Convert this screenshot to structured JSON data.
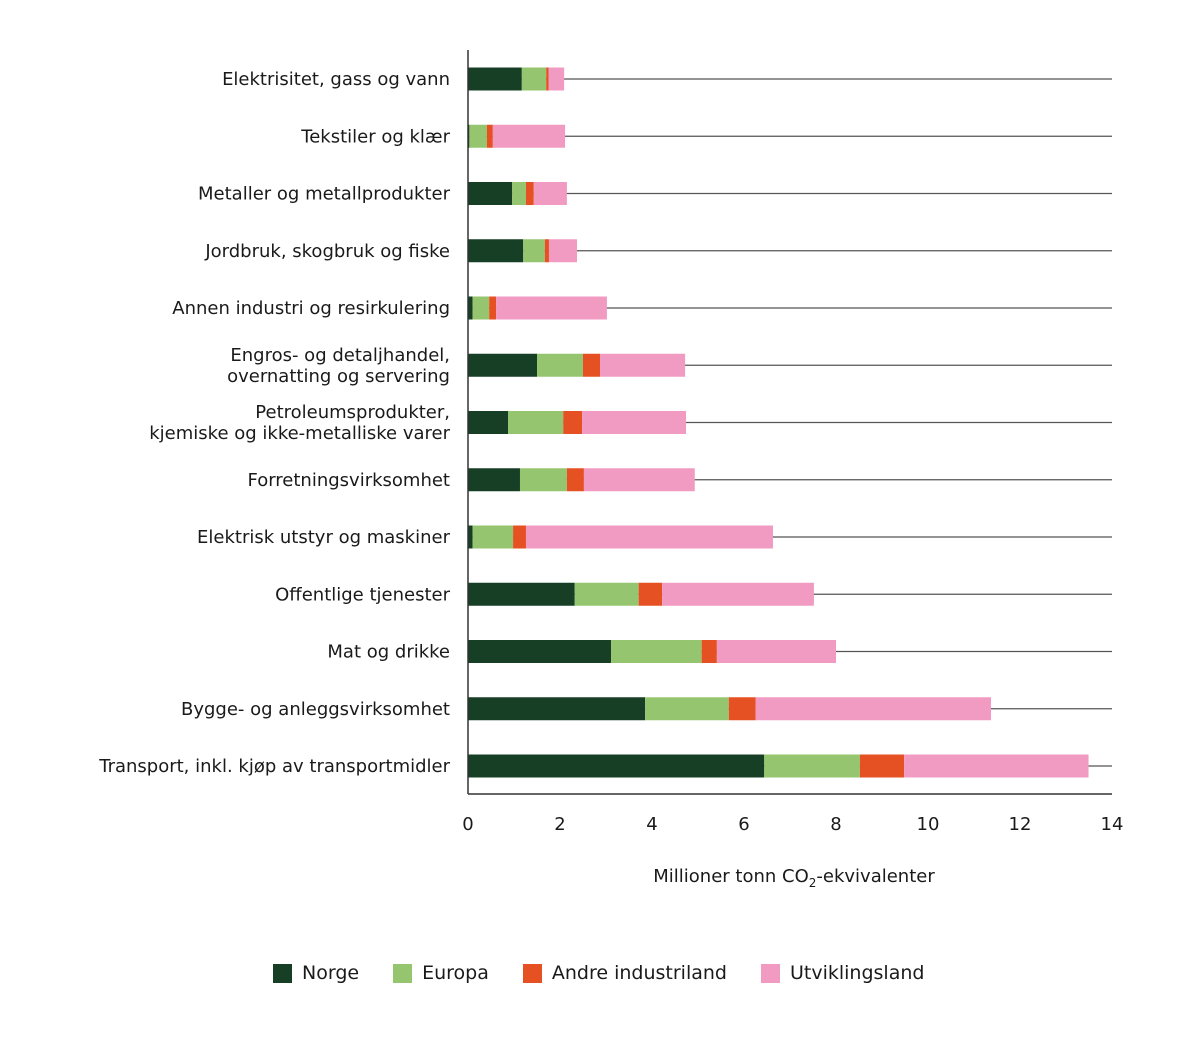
{
  "chart_data": {
    "type": "bar",
    "orientation": "horizontal",
    "stacked": true,
    "title": "",
    "xlabel": "Millioner tonn CO2-ekvivalenter",
    "xlabel_parts": {
      "before": "Millioner tonn CO",
      "sub": "2",
      "after": "-ekvivalenter"
    },
    "ylabel": "",
    "xlim": [
      0,
      14
    ],
    "xticks": [
      0,
      2,
      4,
      6,
      8,
      10,
      12,
      14
    ],
    "grid": "horizontal reference line per category",
    "legend_position": "bottom",
    "categories": [
      [
        "Elektrisitet, gass og vann"
      ],
      [
        "Tekstiler og klær"
      ],
      [
        "Metaller og metallprodukter"
      ],
      [
        "Jordbruk, skogbruk og fiske"
      ],
      [
        "Annen industri og resirkulering"
      ],
      [
        "Engros- og detaljhandel,",
        "overnatting og servering"
      ],
      [
        "Petroleumsprodukter,",
        "kjemiske og ikke-metalliske varer"
      ],
      [
        "Forretningsvirksomhet"
      ],
      [
        "Elektrisk utstyr og maskiner"
      ],
      [
        "Offentlige tjenester"
      ],
      [
        "Mat og drikke"
      ],
      [
        "Bygge- og anleggsvirksomhet"
      ],
      [
        "Transport, inkl. kjøp av transportmidler"
      ]
    ],
    "series": [
      {
        "name": "Norge",
        "color": "#173f25",
        "values": [
          1.17,
          0.03,
          0.96,
          1.2,
          0.1,
          1.5,
          0.87,
          1.13,
          0.1,
          2.32,
          3.11,
          3.85,
          6.44
        ]
      },
      {
        "name": "Europa",
        "color": "#95c56e",
        "values": [
          0.53,
          0.38,
          0.3,
          0.47,
          0.36,
          1.0,
          1.2,
          1.02,
          0.88,
          1.39,
          1.97,
          1.82,
          2.08
        ]
      },
      {
        "name": "Andre industriland",
        "color": "#e55122",
        "values": [
          0.05,
          0.13,
          0.17,
          0.09,
          0.15,
          0.37,
          0.41,
          0.37,
          0.28,
          0.51,
          0.33,
          0.58,
          0.96
        ]
      },
      {
        "name": "Utviklingsland",
        "color": "#f19bc3",
        "values": [
          0.34,
          1.57,
          0.72,
          0.61,
          2.41,
          1.85,
          2.26,
          2.41,
          5.37,
          3.3,
          2.59,
          5.12,
          4.01
        ]
      }
    ]
  }
}
